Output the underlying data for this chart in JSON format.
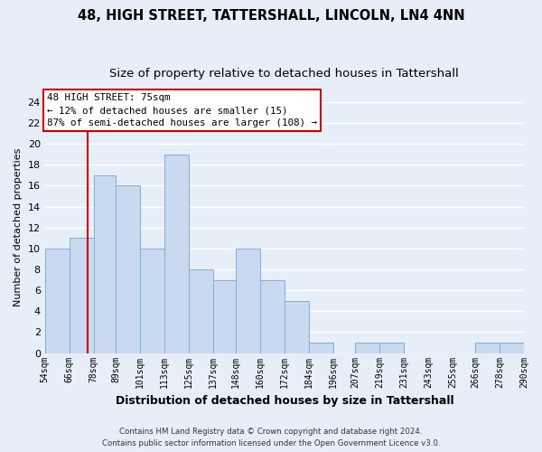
{
  "title": "48, HIGH STREET, TATTERSHALL, LINCOLN, LN4 4NN",
  "subtitle": "Size of property relative to detached houses in Tattershall",
  "xlabel": "Distribution of detached houses by size in Tattershall",
  "ylabel": "Number of detached properties",
  "bin_edges": [
    54,
    66,
    78,
    89,
    101,
    113,
    125,
    137,
    148,
    160,
    172,
    184,
    196,
    207,
    219,
    231,
    243,
    255,
    266,
    278,
    290
  ],
  "bin_labels": [
    "54sqm",
    "66sqm",
    "78sqm",
    "89sqm",
    "101sqm",
    "113sqm",
    "125sqm",
    "137sqm",
    "148sqm",
    "160sqm",
    "172sqm",
    "184sqm",
    "196sqm",
    "207sqm",
    "219sqm",
    "231sqm",
    "243sqm",
    "255sqm",
    "266sqm",
    "278sqm",
    "290sqm"
  ],
  "counts": [
    10,
    11,
    17,
    16,
    10,
    19,
    8,
    7,
    10,
    7,
    5,
    1,
    0,
    1,
    1,
    0,
    0,
    0,
    1,
    1
  ],
  "bar_color": "#c9d9f0",
  "bar_edge_color": "#7fafd4",
  "vline_x": 75,
  "vline_color": "#cc0000",
  "ylim": [
    0,
    24
  ],
  "yticks": [
    0,
    2,
    4,
    6,
    8,
    10,
    12,
    14,
    16,
    18,
    20,
    22,
    24
  ],
  "annotation_title": "48 HIGH STREET: 75sqm",
  "annotation_line1": "← 12% of detached houses are smaller (15)",
  "annotation_line2": "87% of semi-detached houses are larger (108) →",
  "annotation_box_color": "#ffffff",
  "annotation_box_edge": "#cc0000",
  "footer1": "Contains HM Land Registry data © Crown copyright and database right 2024.",
  "footer2": "Contains public sector information licensed under the Open Government Licence v3.0.",
  "background_color": "#e8eef8",
  "grid_color": "#ffffff",
  "title_fontsize": 10.5,
  "subtitle_fontsize": 9.5
}
